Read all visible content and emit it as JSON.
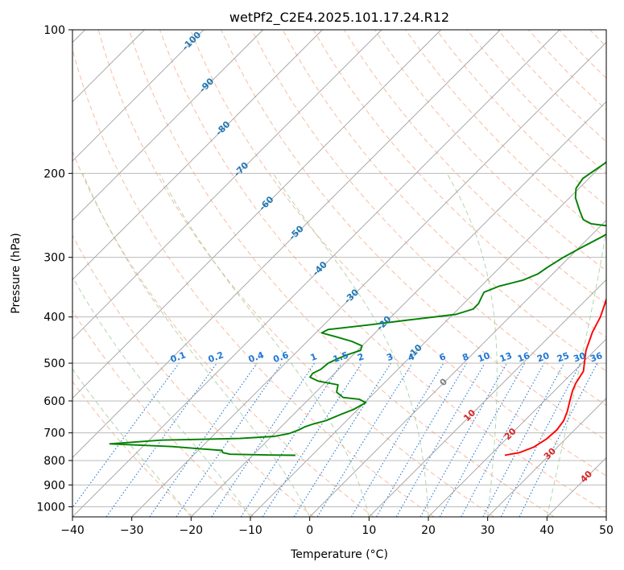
{
  "chart_data": {
    "type": "line",
    "title": "wetPf2_C2E4.2025.101.17.24.R12",
    "xlabel": "Temperature (°C)",
    "ylabel": "Pressure (hPa)",
    "xlim": [
      -40,
      50
    ],
    "ylim": [
      1050,
      100
    ],
    "y_scale": "log",
    "x_ticks": [
      -40,
      -30,
      -20,
      -10,
      0,
      10,
      20,
      30,
      40,
      50
    ],
    "y_ticks": [
      1000,
      900,
      800,
      700,
      600,
      500,
      400,
      300,
      200,
      100
    ],
    "grid": true,
    "series": [
      {
        "color": "#ff0000",
        "points": [
          [
            22.5,
            780
          ],
          [
            24.5,
            770
          ],
          [
            26.0,
            750
          ],
          [
            26.8,
            720
          ],
          [
            27.0,
            690
          ],
          [
            26.6,
            660
          ],
          [
            25.6,
            630
          ],
          [
            24.3,
            600
          ],
          [
            23.0,
            570
          ],
          [
            22.3,
            550
          ],
          [
            21.6,
            520
          ],
          [
            20.4,
            500
          ],
          [
            18.5,
            470
          ],
          [
            16.5,
            430
          ],
          [
            15.3,
            400
          ],
          [
            13.5,
            370
          ],
          [
            11.5,
            340
          ],
          [
            9.3,
            310
          ],
          [
            7.0,
            285
          ],
          [
            4.8,
            265
          ],
          [
            3.3,
            250
          ],
          [
            3.0,
            238
          ],
          [
            3.5,
            225
          ],
          [
            4.5,
            210
          ],
          [
            5.3,
            200
          ],
          [
            5.3,
            190
          ],
          [
            4.5,
            180
          ],
          [
            4.3,
            170
          ],
          [
            4.8,
            160
          ],
          [
            4.8,
            150
          ],
          [
            4.3,
            142
          ],
          [
            4.5,
            135
          ],
          [
            5.8,
            128
          ],
          [
            7.0,
            122
          ],
          [
            7.3,
            118
          ],
          [
            6.8,
            113
          ],
          [
            6.6,
            108
          ],
          [
            6.8,
            103
          ],
          [
            6.8,
            100
          ]
        ]
      },
      {
        "color": "#008000",
        "points": [
          [
            -12.8,
            780
          ],
          [
            -17.0,
            779
          ],
          [
            -24.0,
            776
          ],
          [
            -25.5,
            770
          ],
          [
            -26.0,
            762
          ],
          [
            -35.0,
            748
          ],
          [
            -46.0,
            738
          ],
          [
            -38.0,
            725
          ],
          [
            -25.0,
            719
          ],
          [
            -19.5,
            712
          ],
          [
            -17.5,
            702
          ],
          [
            -16.5,
            690
          ],
          [
            -16.0,
            680
          ],
          [
            -15.0,
            670
          ],
          [
            -13.5,
            660
          ],
          [
            -12.0,
            640
          ],
          [
            -10.7,
            625
          ],
          [
            -9.8,
            605
          ],
          [
            -11.5,
            595
          ],
          [
            -14.5,
            590
          ],
          [
            -16.5,
            575
          ],
          [
            -17.5,
            555
          ],
          [
            -21.5,
            545
          ],
          [
            -23.5,
            535
          ],
          [
            -23.7,
            525
          ],
          [
            -23.0,
            515
          ],
          [
            -22.8,
            500
          ],
          [
            -22.0,
            490
          ],
          [
            -21.0,
            480
          ],
          [
            -19.5,
            470
          ],
          [
            -20.0,
            460
          ],
          [
            -22.5,
            450
          ],
          [
            -26.0,
            440
          ],
          [
            -29.0,
            432
          ],
          [
            -28.5,
            425
          ],
          [
            -22.0,
            415
          ],
          [
            -16.0,
            405
          ],
          [
            -9.5,
            395
          ],
          [
            -7.5,
            385
          ],
          [
            -7.5,
            375
          ],
          [
            -8.0,
            365
          ],
          [
            -8.5,
            355
          ],
          [
            -7.0,
            345
          ],
          [
            -4.0,
            335
          ],
          [
            -2.5,
            325
          ],
          [
            -2.0,
            315
          ],
          [
            -1.0,
            300
          ],
          [
            0.5,
            285
          ],
          [
            2.0,
            272
          ],
          [
            3.0,
            262
          ],
          [
            1.5,
            258
          ],
          [
            -2.0,
            255
          ],
          [
            -4.0,
            250
          ],
          [
            -6.0,
            240
          ],
          [
            -9.0,
            225
          ],
          [
            -10.5,
            215
          ],
          [
            -11.0,
            205
          ],
          [
            -10.5,
            198
          ],
          [
            -9.8,
            190
          ],
          [
            -9.0,
            180
          ],
          [
            -8.5,
            170
          ],
          [
            -7.5,
            160
          ],
          [
            -6.0,
            150
          ],
          [
            -5.5,
            140
          ],
          [
            -5.5,
            130
          ],
          [
            -5.0,
            125
          ],
          [
            -4.0,
            120
          ],
          [
            -2.0,
            113
          ],
          [
            0.0,
            106
          ],
          [
            1.5,
            100
          ]
        ]
      }
    ],
    "mixing_ratio_labels": [
      "0.1",
      "0.2",
      "0.4",
      "0.6",
      "1",
      "1.5",
      "2",
      "3",
      "4",
      "6",
      "8",
      "10",
      "13",
      "16",
      "20",
      "25",
      "30",
      "36"
    ],
    "isotherm_labels": [
      "-100",
      "-90",
      "-80",
      "-70",
      "-60",
      "-50",
      "-40",
      "-30",
      "-20",
      "-10",
      "0",
      "10",
      "20",
      "30",
      "40"
    ],
    "colors": {
      "temperature": "#ff0000",
      "dewpoint": "#008000",
      "dry_adiabat": "#f4a582",
      "moist_adiabat": "#92c58e",
      "mixing_ratio": "#1f77d4",
      "isotherm_label": "#1f77b4",
      "warm_label": "#d62728",
      "zero_label": "#808080"
    }
  }
}
